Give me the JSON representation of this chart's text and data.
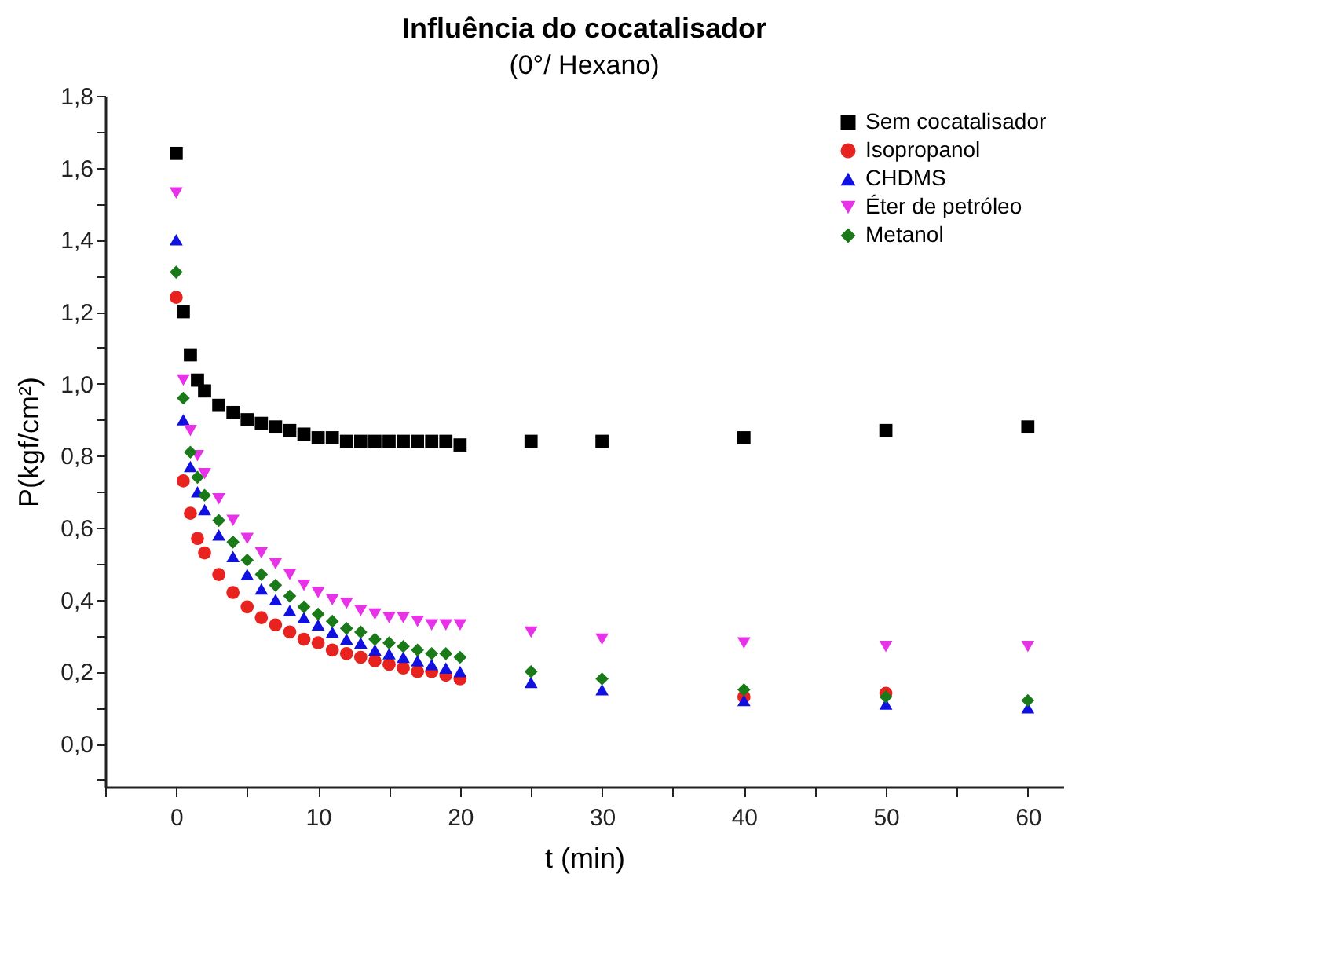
{
  "chart_data": {
    "type": "scatter",
    "title": "Influência do cocatalisador",
    "subtitle": "(0°/ Hexano)",
    "xlabel": "t (min)",
    "ylabel": "P(kgf/cm²)",
    "x": [
      0,
      0.5,
      1,
      1.5,
      2,
      3,
      4,
      5,
      6,
      7,
      8,
      9,
      10,
      11,
      12,
      13,
      14,
      15,
      16,
      17,
      18,
      19,
      20,
      25,
      30,
      40,
      50,
      60
    ],
    "series": [
      {
        "name": "Sem cocatalisador",
        "color": "#000000",
        "marker": "square",
        "values": [
          1.64,
          1.2,
          1.08,
          1.01,
          0.98,
          0.94,
          0.92,
          0.9,
          0.89,
          0.88,
          0.87,
          0.86,
          0.85,
          0.85,
          0.84,
          0.84,
          0.84,
          0.84,
          0.84,
          0.84,
          0.84,
          0.84,
          0.83,
          0.84,
          0.84,
          0.85,
          0.87,
          0.88
        ]
      },
      {
        "name": "Isopropanol",
        "color": "#e8231f",
        "marker": "circle",
        "values": [
          1.24,
          0.73,
          0.64,
          0.57,
          0.53,
          0.47,
          0.42,
          0.38,
          0.35,
          0.33,
          0.31,
          0.29,
          0.28,
          0.26,
          0.25,
          0.24,
          0.23,
          0.22,
          0.21,
          0.2,
          0.2,
          0.19,
          0.18,
          null,
          null,
          0.13,
          0.14,
          null
        ]
      },
      {
        "name": "CHDMS",
        "color": "#1010e0",
        "marker": "triangle",
        "values": [
          1.4,
          0.9,
          0.77,
          0.7,
          0.65,
          0.58,
          0.52,
          0.47,
          0.43,
          0.4,
          0.37,
          0.35,
          0.33,
          0.31,
          0.29,
          0.28,
          0.26,
          0.25,
          0.24,
          0.23,
          0.22,
          0.21,
          0.2,
          0.17,
          0.15,
          0.12,
          0.11,
          0.1
        ]
      },
      {
        "name": "Éter de petróleo",
        "color": "#e832e8",
        "marker": "triangle-down",
        "values": [
          1.53,
          1.01,
          0.87,
          0.8,
          0.75,
          0.68,
          0.62,
          0.57,
          0.53,
          0.5,
          0.47,
          0.44,
          0.42,
          0.4,
          0.39,
          0.37,
          0.36,
          0.35,
          0.35,
          0.34,
          0.33,
          0.33,
          0.33,
          0.31,
          0.29,
          0.28,
          0.27,
          0.27
        ]
      },
      {
        "name": "Metanol",
        "color": "#1a7a1a",
        "marker": "diamond",
        "values": [
          1.31,
          0.96,
          0.81,
          0.74,
          0.69,
          0.62,
          0.56,
          0.51,
          0.47,
          0.44,
          0.41,
          0.38,
          0.36,
          0.34,
          0.32,
          0.31,
          0.29,
          0.28,
          0.27,
          0.26,
          0.25,
          0.25,
          0.24,
          0.2,
          0.18,
          0.15,
          0.13,
          0.12
        ]
      }
    ],
    "xlim": [
      -5,
      62.5
    ],
    "ylim": [
      -0.12,
      1.8
    ],
    "xticks": [
      {
        "value": -5,
        "label": null
      },
      0,
      {
        "value": 5,
        "label": null
      },
      10,
      {
        "value": 15,
        "label": null
      },
      20,
      {
        "value": 25,
        "label": null
      },
      30,
      {
        "value": 35,
        "label": null
      },
      40,
      {
        "value": 45,
        "label": null
      },
      50,
      {
        "value": 55,
        "label": null
      },
      60
    ],
    "yticks": [
      {
        "value": -0.1,
        "label": null
      },
      {
        "value": 0,
        "label": "0,0"
      },
      {
        "value": 0.1,
        "label": null
      },
      {
        "value": 0.2,
        "label": "0,2"
      },
      {
        "value": 0.3,
        "label": null
      },
      {
        "value": 0.4,
        "label": "0,4"
      },
      {
        "value": 0.5,
        "label": null
      },
      {
        "value": 0.6,
        "label": "0,6"
      },
      {
        "value": 0.7,
        "label": null
      },
      {
        "value": 0.8,
        "label": "0,8"
      },
      {
        "value": 0.9,
        "label": null
      },
      {
        "value": 1.0,
        "label": "1,0"
      },
      {
        "value": 1.1,
        "label": null
      },
      {
        "value": 1.2,
        "label": "1,2"
      },
      {
        "value": 1.3,
        "label": null
      },
      {
        "value": 1.4,
        "label": "1,4"
      },
      {
        "value": 1.5,
        "label": null
      },
      {
        "value": 1.6,
        "label": "1,6"
      },
      {
        "value": 1.7,
        "label": null
      },
      {
        "value": 1.8,
        "label": "1,8"
      }
    ],
    "grid": false,
    "legend": "top right"
  }
}
